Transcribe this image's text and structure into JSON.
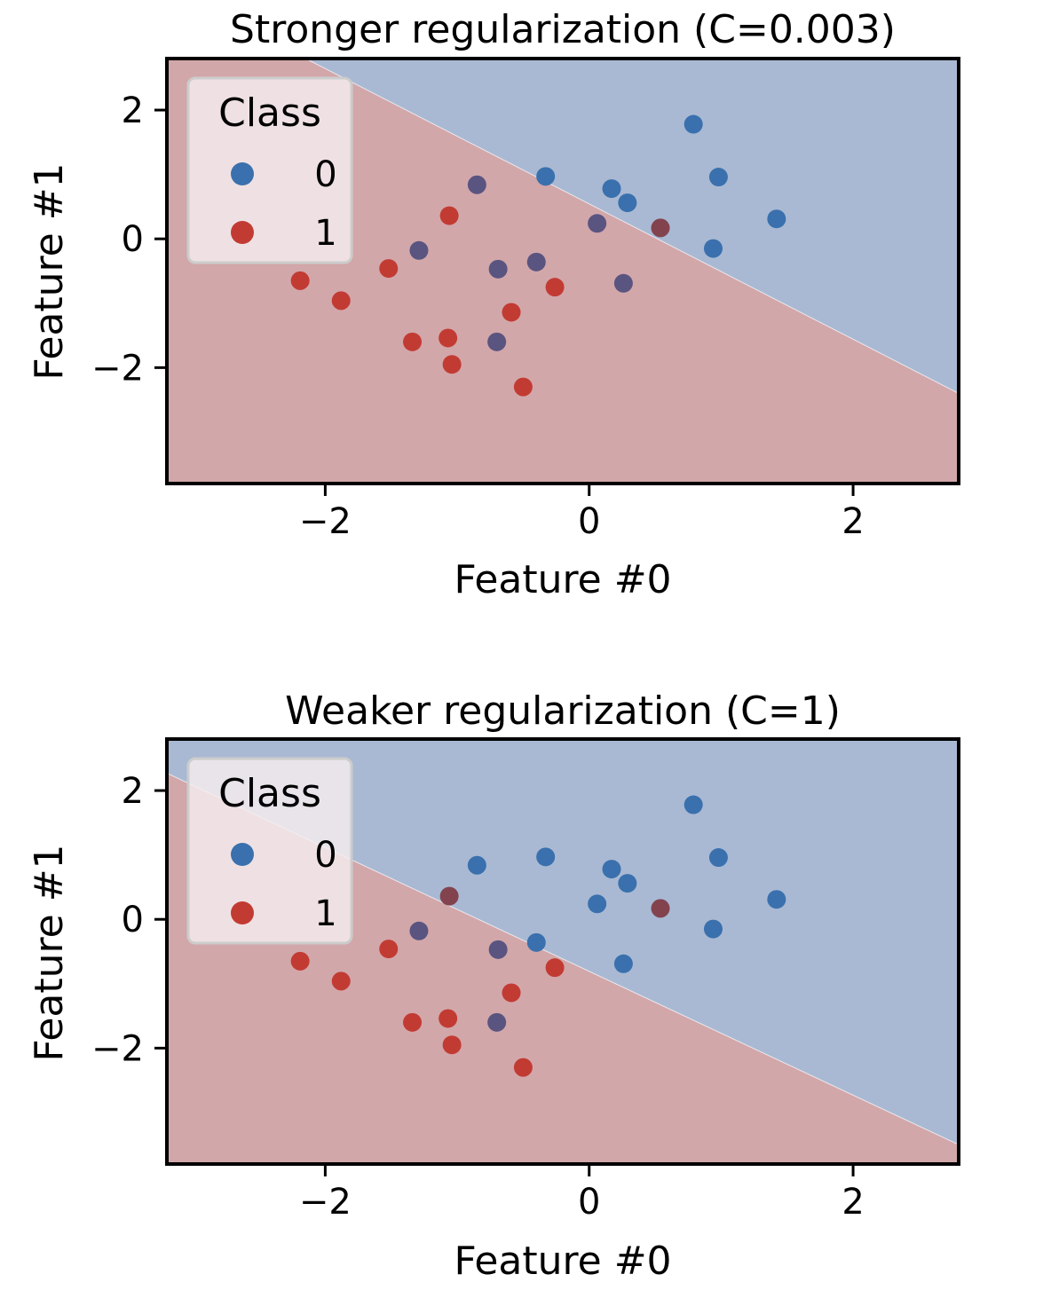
{
  "colors": {
    "class0_region": "#a9b9d3",
    "class1_region": "#d2a7aa",
    "class0_point": "#3a70ad",
    "class1_point": "#c23b33",
    "mixed_point_dark": "#5a5480",
    "mixed_point_red": "#82434f",
    "legend_bg": "#f5eeef",
    "legend_border": "#cccccc"
  },
  "chart_data": [
    {
      "type": "scatter",
      "title": "Stronger regularization (C=0.003)",
      "xlabel": "Feature #0",
      "ylabel": "Feature #1",
      "xlim": [
        -3.2,
        2.8
      ],
      "ylim": [
        -3.8,
        2.8
      ],
      "xticks": [
        -2,
        0,
        2
      ],
      "xtick_labels": [
        "−2",
        "0",
        "2"
      ],
      "yticks": [
        -2,
        0,
        2
      ],
      "ytick_labels": [
        "−2",
        "0",
        "2"
      ],
      "legend": {
        "title": "Class",
        "entries": [
          "0",
          "1"
        ],
        "placement": "upper-left"
      },
      "decision_boundary": {
        "line": [
          [
            -2.1,
            2.75
          ],
          [
            2.8,
            -2.4
          ]
        ],
        "upper_region": "class0",
        "lower_region": "class1"
      },
      "points": [
        {
          "x": 0.79,
          "y": 1.78,
          "c": "class0"
        },
        {
          "x": -0.33,
          "y": 0.97,
          "c": "class0"
        },
        {
          "x": 0.17,
          "y": 0.78,
          "c": "class0"
        },
        {
          "x": 0.29,
          "y": 0.56,
          "c": "class0"
        },
        {
          "x": 0.98,
          "y": 0.96,
          "c": "class0"
        },
        {
          "x": 1.42,
          "y": 0.31,
          "c": "class0"
        },
        {
          "x": 0.94,
          "y": -0.15,
          "c": "class0"
        },
        {
          "x": 0.06,
          "y": 0.24,
          "c": "mixed_dark"
        },
        {
          "x": 0.54,
          "y": 0.17,
          "c": "mixed_red"
        },
        {
          "x": -0.85,
          "y": 0.84,
          "c": "mixed_dark"
        },
        {
          "x": -1.06,
          "y": 0.36,
          "c": "class1"
        },
        {
          "x": -1.29,
          "y": -0.18,
          "c": "mixed_dark"
        },
        {
          "x": -1.52,
          "y": -0.46,
          "c": "class1"
        },
        {
          "x": -2.19,
          "y": -0.65,
          "c": "class1"
        },
        {
          "x": -1.88,
          "y": -0.96,
          "c": "class1"
        },
        {
          "x": -0.69,
          "y": -0.47,
          "c": "mixed_dark"
        },
        {
          "x": -0.4,
          "y": -0.36,
          "c": "mixed_dark"
        },
        {
          "x": -0.26,
          "y": -0.75,
          "c": "class1"
        },
        {
          "x": 0.26,
          "y": -0.69,
          "c": "mixed_dark"
        },
        {
          "x": -0.59,
          "y": -1.14,
          "c": "class1"
        },
        {
          "x": -1.07,
          "y": -1.54,
          "c": "class1"
        },
        {
          "x": -1.34,
          "y": -1.6,
          "c": "class1"
        },
        {
          "x": -0.7,
          "y": -1.6,
          "c": "mixed_dark"
        },
        {
          "x": -1.04,
          "y": -1.95,
          "c": "class1"
        },
        {
          "x": -0.5,
          "y": -2.3,
          "c": "class1"
        }
      ]
    },
    {
      "type": "scatter",
      "title": "Weaker regularization (C=1)",
      "xlabel": "Feature #0",
      "ylabel": "Feature #1",
      "xlim": [
        -3.2,
        2.8
      ],
      "ylim": [
        -3.8,
        2.8
      ],
      "xticks": [
        -2,
        0,
        2
      ],
      "xtick_labels": [
        "−2",
        "0",
        "2"
      ],
      "yticks": [
        -2,
        0,
        2
      ],
      "ytick_labels": [
        "−2",
        "0",
        "2"
      ],
      "legend": {
        "title": "Class",
        "entries": [
          "0",
          "1"
        ],
        "placement": "upper-left"
      },
      "decision_boundary": {
        "line": [
          [
            -3.2,
            2.27
          ],
          [
            2.8,
            -3.5
          ]
        ],
        "upper_region": "class0",
        "lower_region": "class1"
      },
      "points": [
        {
          "x": 0.79,
          "y": 1.78,
          "c": "class0"
        },
        {
          "x": -0.33,
          "y": 0.97,
          "c": "class0"
        },
        {
          "x": 0.17,
          "y": 0.78,
          "c": "class0"
        },
        {
          "x": 0.29,
          "y": 0.56,
          "c": "class0"
        },
        {
          "x": 0.98,
          "y": 0.96,
          "c": "class0"
        },
        {
          "x": 1.42,
          "y": 0.31,
          "c": "class0"
        },
        {
          "x": 0.94,
          "y": -0.15,
          "c": "class0"
        },
        {
          "x": 0.06,
          "y": 0.24,
          "c": "class0"
        },
        {
          "x": 0.54,
          "y": 0.17,
          "c": "mixed_red"
        },
        {
          "x": -0.85,
          "y": 0.84,
          "c": "class0"
        },
        {
          "x": -1.06,
          "y": 0.36,
          "c": "mixed_red"
        },
        {
          "x": -1.29,
          "y": -0.18,
          "c": "mixed_dark"
        },
        {
          "x": -1.52,
          "y": -0.46,
          "c": "class1"
        },
        {
          "x": -2.19,
          "y": -0.65,
          "c": "class1"
        },
        {
          "x": -1.88,
          "y": -0.96,
          "c": "class1"
        },
        {
          "x": -0.69,
          "y": -0.47,
          "c": "mixed_dark"
        },
        {
          "x": -0.4,
          "y": -0.36,
          "c": "class0"
        },
        {
          "x": -0.26,
          "y": -0.75,
          "c": "class1"
        },
        {
          "x": 0.26,
          "y": -0.69,
          "c": "class0"
        },
        {
          "x": -0.59,
          "y": -1.14,
          "c": "class1"
        },
        {
          "x": -1.07,
          "y": -1.54,
          "c": "class1"
        },
        {
          "x": -1.34,
          "y": -1.6,
          "c": "class1"
        },
        {
          "x": -0.7,
          "y": -1.6,
          "c": "mixed_dark"
        },
        {
          "x": -1.04,
          "y": -1.95,
          "c": "class1"
        },
        {
          "x": -0.5,
          "y": -2.3,
          "c": "class1"
        }
      ]
    }
  ]
}
